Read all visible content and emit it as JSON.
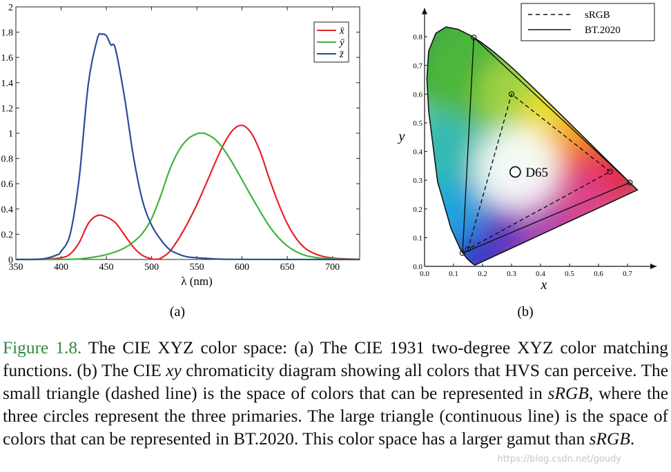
{
  "chart_data": [
    {
      "type": "line",
      "panel_label": "(a)",
      "xlabel": "λ (nm)",
      "ylabel": "",
      "xlim": [
        350,
        730
      ],
      "ylim": [
        0,
        2
      ],
      "x_ticks": [
        350,
        400,
        450,
        500,
        550,
        600,
        650,
        700
      ],
      "y_ticks": [
        0,
        0.2,
        0.4,
        0.6,
        0.8,
        1,
        1.2,
        1.4,
        1.6,
        1.8,
        2
      ],
      "legend_position": "top-right",
      "series": [
        {
          "name": "x̄",
          "color": "#e8202a",
          "x": [
            350,
            380,
            400,
            410,
            420,
            430,
            440,
            450,
            460,
            470,
            480,
            490,
            500,
            505,
            510,
            520,
            530,
            540,
            550,
            560,
            570,
            580,
            590,
            600,
            610,
            620,
            630,
            640,
            650,
            660,
            670,
            680,
            690,
            700,
            710,
            720,
            730
          ],
          "values": [
            0,
            0.001,
            0.014,
            0.043,
            0.134,
            0.284,
            0.348,
            0.336,
            0.291,
            0.195,
            0.096,
            0.032,
            0.005,
            0.002,
            0.009,
            0.063,
            0.165,
            0.29,
            0.433,
            0.595,
            0.762,
            0.916,
            1.026,
            1.062,
            1.003,
            0.854,
            0.642,
            0.448,
            0.284,
            0.165,
            0.087,
            0.047,
            0.023,
            0.011,
            0.006,
            0.003,
            0.001
          ]
        },
        {
          "name": "ȳ",
          "color": "#3cb43c",
          "x": [
            350,
            380,
            400,
            420,
            440,
            450,
            460,
            470,
            480,
            490,
            500,
            510,
            520,
            530,
            540,
            550,
            555,
            560,
            570,
            580,
            590,
            600,
            610,
            620,
            630,
            640,
            650,
            660,
            670,
            680,
            690,
            700,
            720,
            730
          ],
          "values": [
            0,
            0,
            0.0004,
            0.004,
            0.023,
            0.038,
            0.06,
            0.091,
            0.139,
            0.208,
            0.323,
            0.503,
            0.71,
            0.862,
            0.954,
            0.995,
            1.0,
            0.995,
            0.952,
            0.87,
            0.757,
            0.631,
            0.503,
            0.381,
            0.265,
            0.175,
            0.107,
            0.061,
            0.032,
            0.017,
            0.008,
            0.004,
            0.001,
            0
          ]
        },
        {
          "name": "z̄",
          "color": "#2b4a9b",
          "x": [
            350,
            380,
            395,
            400,
            410,
            420,
            430,
            440,
            445,
            450,
            455,
            460,
            470,
            480,
            490,
            500,
            510,
            520,
            530,
            540,
            560,
            580,
            600,
            650,
            700,
            730
          ],
          "values": [
            0,
            0.005,
            0.035,
            0.065,
            0.201,
            0.646,
            1.386,
            1.747,
            1.783,
            1.772,
            1.7,
            1.669,
            1.288,
            0.813,
            0.465,
            0.272,
            0.158,
            0.078,
            0.042,
            0.02,
            0.009,
            0.002,
            0.001,
            0,
            0,
            0
          ]
        }
      ]
    },
    {
      "type": "scatter",
      "panel_label": "(b)",
      "xlabel": "x",
      "ylabel": "y",
      "xlim": [
        0,
        0.8
      ],
      "ylim": [
        0,
        0.9
      ],
      "x_ticks": [
        "0.0",
        "0.1",
        "0.2",
        "0.3",
        "0.4",
        "0.5",
        "0.6",
        "0.7"
      ],
      "y_ticks": [
        "0.0",
        "0.1",
        "0.2",
        "0.3",
        "0.4",
        "0.5",
        "0.6",
        "0.7",
        "0.8"
      ],
      "locus": [
        [
          0.175,
          0.005
        ],
        [
          0.174,
          0.005
        ],
        [
          0.172,
          0.005
        ],
        [
          0.169,
          0.007
        ],
        [
          0.164,
          0.011
        ],
        [
          0.156,
          0.018
        ],
        [
          0.144,
          0.03
        ],
        [
          0.124,
          0.058
        ],
        [
          0.091,
          0.133
        ],
        [
          0.045,
          0.295
        ],
        [
          0.014,
          0.542
        ],
        [
          0.008,
          0.654
        ],
        [
          0.014,
          0.75
        ],
        [
          0.039,
          0.812
        ],
        [
          0.074,
          0.834
        ],
        [
          0.115,
          0.826
        ],
        [
          0.155,
          0.806
        ],
        [
          0.193,
          0.782
        ],
        [
          0.23,
          0.754
        ],
        [
          0.266,
          0.724
        ],
        [
          0.302,
          0.692
        ],
        [
          0.337,
          0.659
        ],
        [
          0.373,
          0.624
        ],
        [
          0.409,
          0.589
        ],
        [
          0.444,
          0.554
        ],
        [
          0.479,
          0.52
        ],
        [
          0.512,
          0.487
        ],
        [
          0.545,
          0.454
        ],
        [
          0.575,
          0.424
        ],
        [
          0.603,
          0.396
        ],
        [
          0.627,
          0.372
        ],
        [
          0.648,
          0.351
        ],
        [
          0.666,
          0.334
        ],
        [
          0.68,
          0.32
        ],
        [
          0.692,
          0.308
        ],
        [
          0.734,
          0.266
        ]
      ],
      "triangles": [
        {
          "name": "sRGB",
          "style": "dashed",
          "vertices": [
            [
              0.64,
              0.33
            ],
            [
              0.3,
              0.6
            ],
            [
              0.15,
              0.06
            ]
          ]
        },
        {
          "name": "BT.2020",
          "style": "solid",
          "vertices": [
            [
              0.708,
              0.292
            ],
            [
              0.17,
              0.797
            ],
            [
              0.131,
              0.046
            ]
          ]
        }
      ],
      "white_point": {
        "label": "D65",
        "x": 0.3127,
        "y": 0.329
      },
      "legend": [
        "sRGB",
        "BT.2020"
      ],
      "legend_position": "top-right"
    }
  ],
  "caption": {
    "label": "Figure 1.8.",
    "segments": [
      {
        "t": " The CIE XYZ color space: (a) The CIE 1931 two-degree XYZ color matching functions. (b) The CIE ",
        "i": false
      },
      {
        "t": "xy",
        "i": true
      },
      {
        "t": " chromaticity diagram showing all colors that HVS can perceive. The small triangle (dashed line) is the space of colors that can be represented in ",
        "i": false
      },
      {
        "t": "sRGB",
        "i": true
      },
      {
        "t": ", where the three circles represent the three primaries. The large triangle (continuous line) is the space of colors that can be represented in BT.2020. This color space has a larger gamut than ",
        "i": false
      },
      {
        "t": "sRGB",
        "i": true
      },
      {
        "t": ".",
        "i": false
      }
    ]
  },
  "watermark": "https://blog.csdn.net/goudy"
}
